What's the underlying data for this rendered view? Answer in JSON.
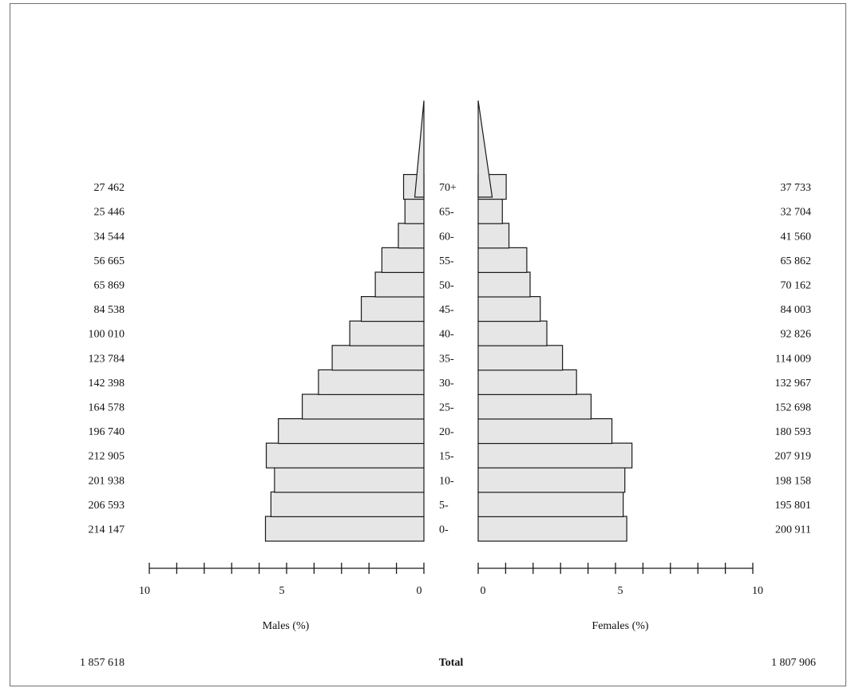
{
  "chart_data": {
    "type": "bar",
    "orientation": "horizontal",
    "layout": "population-pyramid",
    "categories": [
      "0-",
      "5-",
      "10-",
      "15-",
      "20-",
      "25-",
      "30-",
      "35-",
      "40-",
      "45-",
      "50-",
      "55-",
      "60-",
      "65-",
      "70+"
    ],
    "series": [
      {
        "name": "Males (%)",
        "side": "left",
        "values": [
          5.77,
          5.57,
          5.44,
          5.74,
          5.3,
          4.43,
          3.84,
          3.34,
          2.7,
          2.28,
          1.77,
          1.53,
          0.93,
          0.69,
          0.74
        ],
        "counts": [
          "214 147",
          "206 593",
          "201 938",
          "212 905",
          "196 740",
          "164 578",
          "142 398",
          "123 784",
          "100 010",
          "84 538",
          "65 869",
          "56 665",
          "34 544",
          "25 446",
          "27 462"
        ]
      },
      {
        "name": "Females (%)",
        "side": "right",
        "values": [
          5.41,
          5.28,
          5.34,
          5.6,
          4.87,
          4.11,
          3.58,
          3.07,
          2.5,
          2.26,
          1.89,
          1.77,
          1.12,
          0.88,
          1.02
        ],
        "counts": [
          "200 911",
          "195 801",
          "198 158",
          "207 919",
          "180 593",
          "152 698",
          "132 967",
          "114 009",
          "92 826",
          "84 003",
          "70 162",
          "65 862",
          "41 560",
          "32 704",
          "37 733"
        ]
      }
    ],
    "xlim": [
      0,
      10
    ],
    "x_ticks": [
      0,
      1,
      2,
      3,
      4,
      5,
      6,
      7,
      8,
      9,
      10
    ],
    "x_tick_labels": [
      "10",
      "5",
      "0",
      "0",
      "5",
      "10"
    ],
    "xlabel_left": "Males (%)",
    "xlabel_right": "Females (%)",
    "totals": {
      "label": "Total",
      "males": "1 857 618",
      "females": "1 807 906"
    },
    "grid": false,
    "legend": "none",
    "colors": {
      "bar_fill": "#e6e6e6",
      "bar_stroke": "#1a1a1a",
      "axis": "#1a1a1a",
      "text": "#111111"
    }
  }
}
